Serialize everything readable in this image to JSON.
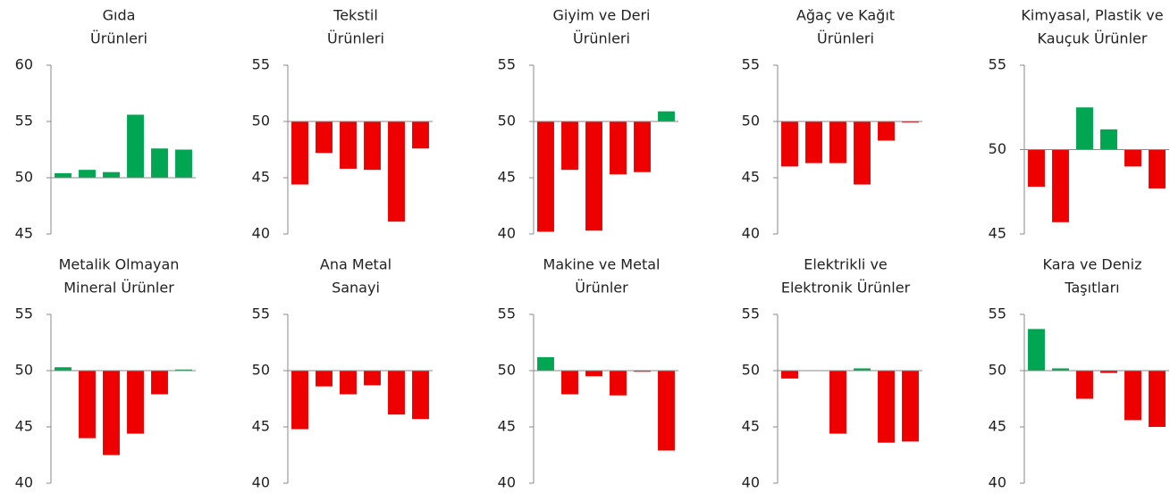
{
  "chart_data": [
    {
      "type": "bar",
      "title": [
        "Gıda",
        "Ürünleri"
      ],
      "values": [
        50.4,
        50.7,
        50.5,
        55.6,
        52.6,
        52.5
      ],
      "baseline": 50,
      "ylim": [
        45,
        60
      ],
      "yticks": [
        45,
        50,
        55,
        60
      ],
      "positive_color": "#00a651",
      "negative_color": "#ee0000"
    },
    {
      "type": "bar",
      "title": [
        "Tekstil",
        "Ürünleri"
      ],
      "values": [
        44.4,
        47.2,
        45.8,
        45.7,
        41.1,
        47.6
      ],
      "baseline": 50,
      "ylim": [
        40,
        55
      ],
      "yticks": [
        40,
        45,
        50,
        55
      ],
      "positive_color": "#00a651",
      "negative_color": "#ee0000"
    },
    {
      "type": "bar",
      "title": [
        "Giyim ve Deri",
        "Ürünleri"
      ],
      "values": [
        40.2,
        45.7,
        40.3,
        45.3,
        45.5,
        50.9
      ],
      "baseline": 50,
      "ylim": [
        40,
        55
      ],
      "yticks": [
        40,
        45,
        50,
        55
      ],
      "positive_color": "#00a651",
      "negative_color": "#ee0000"
    },
    {
      "type": "bar",
      "title": [
        "Ağaç ve Kağıt",
        "Ürünleri"
      ],
      "values": [
        46.0,
        46.3,
        46.3,
        44.4,
        48.3,
        49.9
      ],
      "baseline": 50,
      "ylim": [
        40,
        55
      ],
      "yticks": [
        40,
        45,
        50,
        55
      ],
      "positive_color": "#00a651",
      "negative_color": "#ee0000"
    },
    {
      "type": "bar",
      "title": [
        "Kimyasal, Plastik ve",
        "Kauçuk Ürünler"
      ],
      "values": [
        47.8,
        45.7,
        52.5,
        51.2,
        49.0,
        47.7
      ],
      "baseline": 50,
      "ylim": [
        45,
        55
      ],
      "yticks": [
        45,
        50,
        55
      ],
      "positive_color": "#00a651",
      "negative_color": "#ee0000"
    },
    {
      "type": "bar",
      "title": [
        "Metalik Olmayan",
        "Mineral Ürünler"
      ],
      "values": [
        50.3,
        44.0,
        42.5,
        44.4,
        47.9,
        50.1
      ],
      "baseline": 50,
      "ylim": [
        40,
        55
      ],
      "yticks": [
        40,
        45,
        50,
        55
      ],
      "positive_color": "#00a651",
      "negative_color": "#ee0000"
    },
    {
      "type": "bar",
      "title": [
        "Ana Metal",
        "Sanayi"
      ],
      "values": [
        44.8,
        48.6,
        47.9,
        48.7,
        46.1,
        45.7
      ],
      "baseline": 50,
      "ylim": [
        40,
        55
      ],
      "yticks": [
        40,
        45,
        50,
        55
      ],
      "positive_color": "#00a651",
      "negative_color": "#ee0000"
    },
    {
      "type": "bar",
      "title": [
        "Makine ve Metal",
        "Ürünler"
      ],
      "values": [
        51.2,
        47.9,
        49.5,
        47.8,
        49.9,
        42.9
      ],
      "baseline": 50,
      "ylim": [
        40,
        55
      ],
      "yticks": [
        40,
        45,
        50,
        55
      ],
      "positive_color": "#00a651",
      "negative_color": "#ee0000"
    },
    {
      "type": "bar",
      "title": [
        "Elektrikli ve",
        "Elektronik Ürünler"
      ],
      "values": [
        49.3,
        50.0,
        44.4,
        50.2,
        43.6,
        43.7
      ],
      "baseline": 50,
      "ylim": [
        40,
        55
      ],
      "yticks": [
        40,
        45,
        50,
        55
      ],
      "positive_color": "#00a651",
      "negative_color": "#ee0000"
    },
    {
      "type": "bar",
      "title": [
        "Kara ve Deniz",
        "Taşıtları"
      ],
      "values": [
        53.7,
        50.2,
        47.5,
        49.8,
        45.6,
        45.0
      ],
      "baseline": 50,
      "ylim": [
        40,
        55
      ],
      "yticks": [
        40,
        45,
        50,
        55
      ],
      "positive_color": "#00a651",
      "negative_color": "#ee0000"
    }
  ]
}
